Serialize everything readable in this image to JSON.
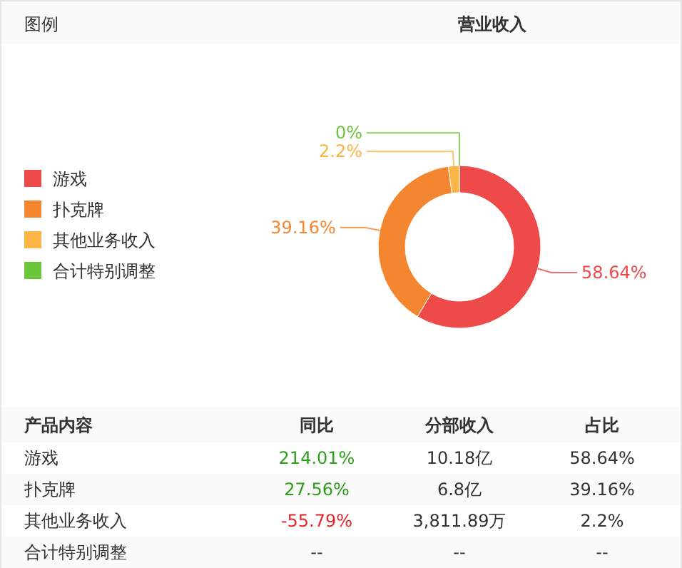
{
  "chart_data": [
    {
      "type": "donut",
      "title": "营业收入",
      "legend_title": "图例",
      "legend": "left",
      "value_labels": [
        "58.64%",
        "39.16%",
        "2.2%",
        "0%"
      ],
      "categories": [
        "游戏",
        "扑克牌",
        "其他业务收入",
        "合计特别调整"
      ],
      "values": [
        58.64,
        39.16,
        2.2,
        0
      ],
      "colors": [
        "#ef4a4a",
        "#f4862f",
        "#fbb446",
        "#6cc63a"
      ]
    },
    {
      "type": "other",
      "categories": [
        "产品内容",
        "同比",
        "分部收入",
        "占比"
      ],
      "y_categories": [
        "游戏",
        "扑克牌",
        "其他业务收入",
        "合计特别调整"
      ],
      "cell_labels": [
        [
          "214.01%",
          "10.18亿",
          "58.64%"
        ],
        [
          "27.56%",
          "6.8亿",
          "39.16%"
        ],
        [
          "-55.79%",
          "3,811.89万",
          "2.2%"
        ],
        [
          "--",
          "--",
          "--"
        ]
      ],
      "colors": [
        "#2e9e1c",
        "#2e9e1c",
        "#e8262d",
        "#333333"
      ]
    }
  ]
}
